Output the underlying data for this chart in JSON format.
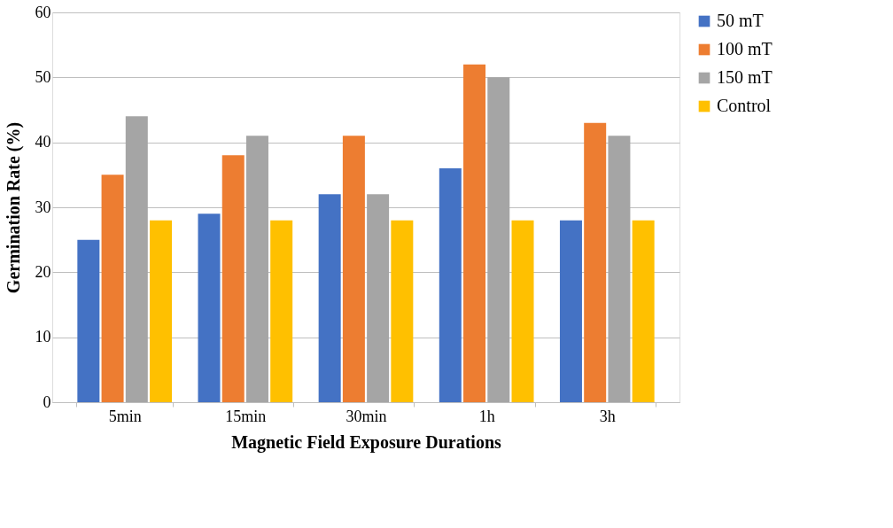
{
  "chart_data": {
    "type": "bar",
    "xlabel": "Magnetic Field Exposure Durations",
    "ylabel": "Germination Rate (%)",
    "categories": [
      "5min",
      "15min",
      "30min",
      "1h",
      "3h"
    ],
    "series": [
      {
        "name": "50 mT",
        "color": "#4472c4",
        "values": [
          25,
          29,
          32,
          36,
          28
        ]
      },
      {
        "name": "100 mT",
        "color": "#ed7d31",
        "values": [
          35,
          38,
          41,
          52,
          43
        ]
      },
      {
        "name": "150 mT",
        "color": "#a5a5a5",
        "values": [
          44,
          41,
          32,
          50,
          41
        ]
      },
      {
        "name": "Control",
        "color": "#ffc000",
        "values": [
          28,
          28,
          28,
          28,
          28
        ]
      }
    ],
    "ylim": [
      0,
      60
    ],
    "yticks": [
      0,
      10,
      20,
      30,
      40,
      50,
      60
    ],
    "grid": "y",
    "legend": "right"
  }
}
